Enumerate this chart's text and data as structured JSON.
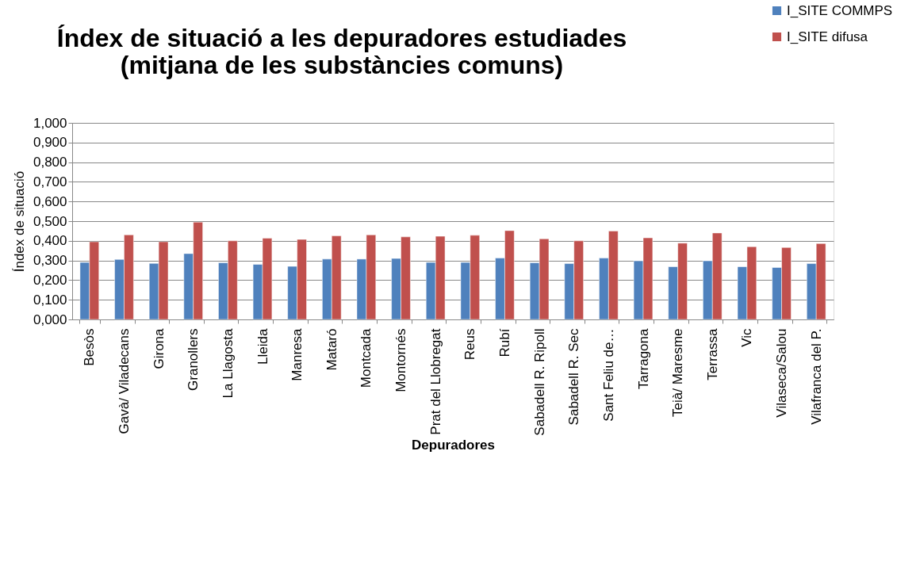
{
  "chart_data": {
    "type": "bar",
    "title": [
      "Índex de situació a les depuradores estudiades",
      "(mitjana de les substàncies comuns)"
    ],
    "xlabel": "Depuradores",
    "ylabel": "Índex de situació",
    "categories": [
      "Besòs",
      "Gavà/ Viladecans",
      "Girona",
      "Granollers",
      "La Llagosta",
      "Lleida",
      "Manresa",
      "Mataró",
      "Montcada",
      "Montornés",
      "Prat del Llobregat",
      "Reus",
      "Rubí",
      "Sabadell R. Ripoll",
      "Sabadell R. Sec",
      "Sant Feliu de…",
      "Tarragona",
      "Teià/ Maresme",
      "Terrassa",
      "Vic",
      "Vilaseca/Salou",
      "Vilafranca del P."
    ],
    "series": [
      {
        "name": "I_SITE COMMPS",
        "color": "#4f81bd",
        "values": [
          0.29,
          0.305,
          0.285,
          0.335,
          0.288,
          0.28,
          0.27,
          0.307,
          0.307,
          0.31,
          0.29,
          0.29,
          0.312,
          0.288,
          0.284,
          0.312,
          0.298,
          0.268,
          0.298,
          0.268,
          0.264,
          0.284
        ]
      },
      {
        "name": "I_SITE difusa",
        "color": "#c0504d",
        "values": [
          0.395,
          0.43,
          0.395,
          0.495,
          0.4,
          0.413,
          0.407,
          0.425,
          0.43,
          0.42,
          0.423,
          0.428,
          0.452,
          0.41,
          0.4,
          0.45,
          0.415,
          0.388,
          0.44,
          0.37,
          0.366,
          0.386
        ]
      }
    ],
    "ylim": [
      0,
      1
    ],
    "yticks": [
      {
        "value": 0,
        "label": "0,000"
      },
      {
        "value": 0.1,
        "label": "0,100"
      },
      {
        "value": 0.2,
        "label": "0,200"
      },
      {
        "value": 0.3,
        "label": "0,300"
      },
      {
        "value": 0.4,
        "label": "0,400"
      },
      {
        "value": 0.5,
        "label": "0,500"
      },
      {
        "value": 0.6,
        "label": "0,600"
      },
      {
        "value": 0.7,
        "label": "0,700"
      },
      {
        "value": 0.8,
        "label": "0,800"
      },
      {
        "value": 0.9,
        "label": "0,900"
      },
      {
        "value": 1,
        "label": "1,000"
      }
    ],
    "grid": "y",
    "legend": "top right"
  }
}
